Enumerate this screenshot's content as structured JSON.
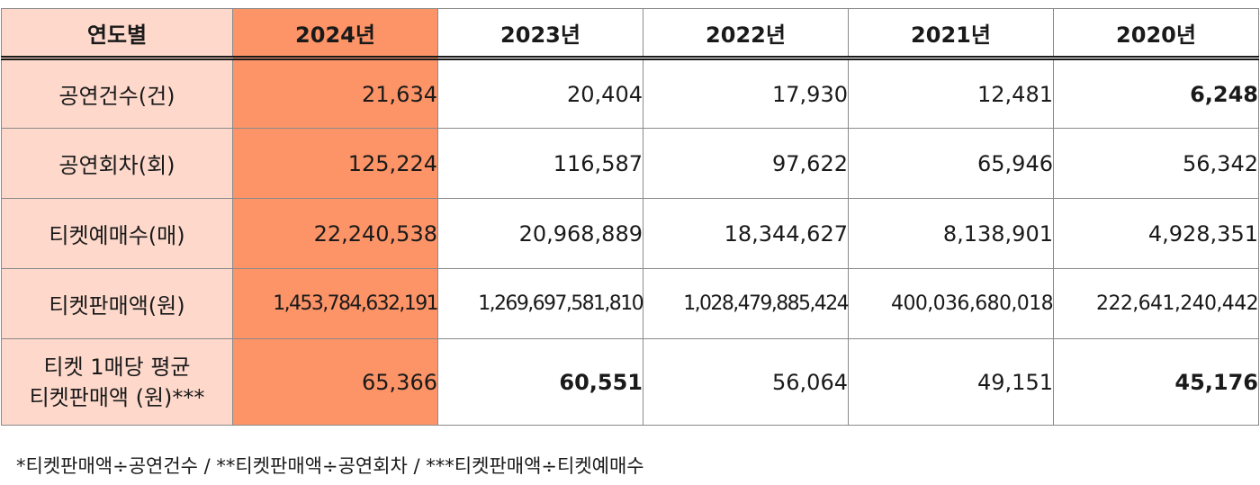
{
  "table": {
    "corner_header": "연도별",
    "years": [
      "2024년",
      "2023년",
      "2022년",
      "2021년",
      "2020년"
    ],
    "highlight_column": "2024년",
    "rows": [
      {
        "label": "공연건수(건)",
        "values": [
          "21,634",
          "20,404",
          "17,930",
          "12,481",
          "6,248"
        ],
        "bold": [
          false,
          false,
          false,
          false,
          true
        ]
      },
      {
        "label": "공연회차(회)",
        "values": [
          "125,224",
          "116,587",
          "97,622",
          "65,946",
          "56,342"
        ],
        "bold": [
          false,
          false,
          false,
          false,
          false
        ]
      },
      {
        "label": "티켓예매수(매)",
        "values": [
          "22,240,538",
          "20,968,889",
          "18,344,627",
          "8,138,901",
          "4,928,351"
        ],
        "bold": [
          false,
          false,
          false,
          false,
          false
        ]
      },
      {
        "label": "티켓판매액(원)",
        "values": [
          "1,453,784,632,191",
          "1,269,697,581,810",
          "1,028,479,885,424",
          "400,036,680,018",
          "222,641,240,442"
        ],
        "bold": [
          false,
          false,
          false,
          false,
          false
        ]
      },
      {
        "label_line1": "티켓 1매당 평균",
        "label_line2": "티켓판매액 (원)***",
        "values": [
          "65,366",
          "60,551",
          "56,064",
          "49,151",
          "45,176"
        ],
        "bold": [
          false,
          true,
          false,
          false,
          true
        ]
      }
    ]
  },
  "footnote": "*티켓판매액÷공연건수 / **티켓판매액÷공연회차 / ***티켓판매액÷티켓예매수",
  "colors": {
    "label_bg": "#fdd8cb",
    "highlight_bg": "#fd9468",
    "border": "#8a8a8a",
    "header_rule": "#1a1a1a"
  }
}
